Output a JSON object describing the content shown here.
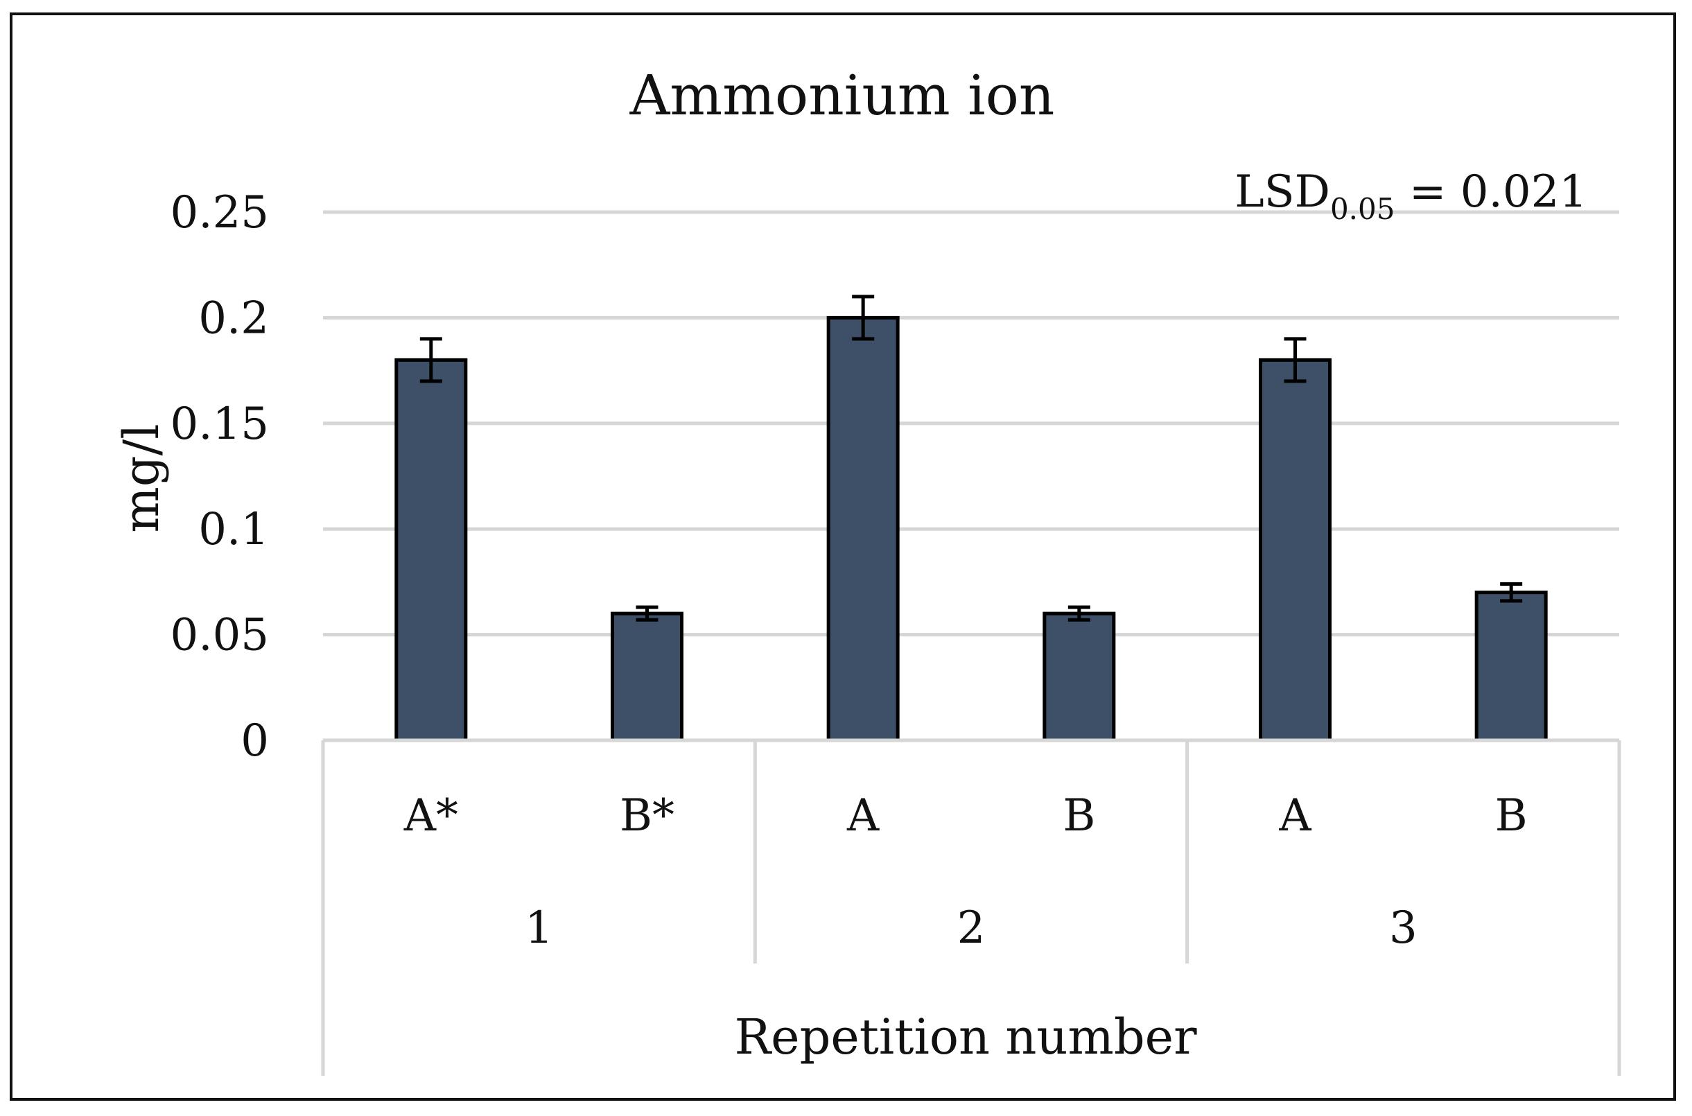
{
  "chart_data": {
    "type": "bar",
    "title": "Ammonium ion",
    "ylabel": "mg/l",
    "xlabel": "Repetition number",
    "annotation": {
      "main": "LSD",
      "sub": "0.05",
      "rest": " = 0.021"
    },
    "ylim": [
      0,
      0.25
    ],
    "yticks": [
      "0",
      "0.05",
      "0.1",
      "0.15",
      "0.2",
      "0.25"
    ],
    "groups": [
      "1",
      "2",
      "3"
    ],
    "categories": [
      "A*",
      "B*",
      "A",
      "B",
      "A",
      "B"
    ],
    "values": [
      0.18,
      0.06,
      0.2,
      0.06,
      0.18,
      0.07
    ],
    "errors": [
      0.01,
      0.003,
      0.01,
      0.003,
      0.01,
      0.004
    ],
    "bar_color": "#3d5068",
    "grid": true,
    "legend": "none"
  }
}
